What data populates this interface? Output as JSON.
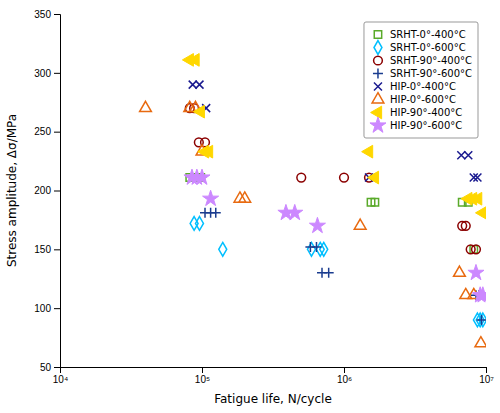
{
  "chart_data": {
    "type": "scatter",
    "xlabel": "Fatigue life, N/cycle",
    "ylabel": "Stress amplitude, Δσ/MPa",
    "log": "x",
    "xlim": [
      10000,
      10000000
    ],
    "ylim": [
      50,
      350
    ],
    "xticks": [
      {
        "value": 10000,
        "label": "10⁴"
      },
      {
        "value": 100000,
        "label": "10⁵"
      },
      {
        "value": 1000000,
        "label": "10⁶"
      },
      {
        "value": 10000000,
        "label": "10⁷"
      }
    ],
    "yticks": [
      50,
      100,
      150,
      200,
      250,
      300,
      350
    ],
    "grid": false,
    "legend": "upper right",
    "series": [
      {
        "name": "SRHT-0°-400°C",
        "color": "#5aaa2a",
        "marker": "square-open",
        "x": [
          82000,
          90000,
          98000,
          1550000,
          1650000,
          6800000,
          7500000,
          8200000
        ],
        "values": [
          211,
          211,
          211,
          190,
          190,
          190,
          190,
          150
        ]
      },
      {
        "name": "SRHT-0°-600°C",
        "color": "#00bfff",
        "marker": "diamond-open",
        "x": [
          88000,
          96000,
          140000,
          590000,
          680000,
          720000,
          8700000,
          9100000,
          9500000
        ],
        "values": [
          172,
          172,
          150,
          150,
          150,
          150,
          90,
          90,
          90
        ]
      },
      {
        "name": "SRHT-90°-400°C",
        "color": "#8b0000",
        "marker": "circle-open",
        "x": [
          82000,
          88000,
          95000,
          105000,
          500000,
          1000000,
          1500000,
          6800000,
          7200000,
          7800000,
          8500000
        ],
        "values": [
          270,
          270,
          241,
          241,
          211,
          211,
          211,
          170,
          170,
          150,
          150
        ]
      },
      {
        "name": "SRHT-90°-600°C",
        "color": "#1a3c8f",
        "marker": "plus",
        "x": [
          105000,
          115000,
          125000,
          580000,
          640000,
          700000,
          780000,
          8500000,
          8900000,
          9300000
        ],
        "values": [
          181,
          181,
          181,
          152,
          152,
          130,
          130,
          111,
          111,
          90
        ]
      },
      {
        "name": "HIP-0°-400°C",
        "color": "#1a1a8f",
        "marker": "x",
        "x": [
          86000,
          96000,
          107000,
          1500000,
          6700000,
          7500000,
          8200000,
          8700000
        ],
        "values": [
          290,
          290,
          270,
          211,
          230,
          230,
          211,
          211
        ]
      },
      {
        "name": "HIP-0°-600°C",
        "color": "#e86a10",
        "marker": "triangle-up-open",
        "x": [
          40000,
          82000,
          90000,
          100000,
          185000,
          200000,
          1300000,
          6500000,
          7200000,
          8200000,
          9200000
        ],
        "values": [
          270,
          270,
          270,
          233,
          193,
          193,
          170,
          130,
          111,
          111,
          70
        ]
      },
      {
        "name": "HIP-90°-400°C",
        "color": "#ffd700",
        "marker": "triangle-left",
        "x": [
          82000,
          90000,
          98000,
          105000,
          112000,
          1500000,
          1650000,
          7500000,
          8100000,
          8800000,
          9500000
        ],
        "values": [
          311,
          311,
          267,
          233,
          233,
          233,
          211,
          193,
          193,
          193,
          181
        ]
      },
      {
        "name": "HIP-90°-600°C",
        "color": "#cc88ff",
        "marker": "star",
        "x": [
          85000,
          92000,
          100000,
          115000,
          390000,
          450000,
          650000,
          8500000,
          9100000,
          9500000
        ],
        "values": [
          211,
          211,
          211,
          193,
          181,
          181,
          170,
          130,
          111,
          111
        ]
      }
    ]
  }
}
